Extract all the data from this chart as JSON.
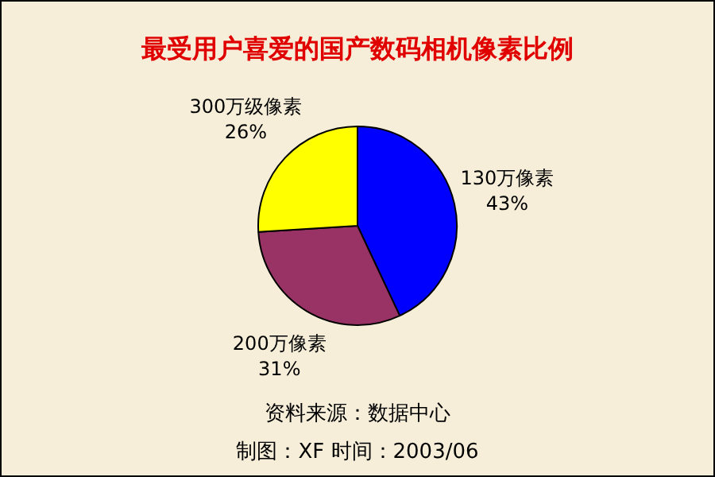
{
  "chart_data": {
    "type": "pie",
    "title": "最受用户喜爱的国产数码相机像素比例",
    "categories": [
      "130万像素",
      "200万像素",
      "300万级像素"
    ],
    "values": [
      43,
      31,
      26
    ],
    "value_labels": [
      "43%",
      "31%",
      "26%"
    ],
    "colors": [
      "#0000ff",
      "#993366",
      "#ffff00"
    ],
    "legend": false,
    "annotations": [
      "资料来源：数据中心",
      "制图：XF 时间：2003/06"
    ]
  }
}
